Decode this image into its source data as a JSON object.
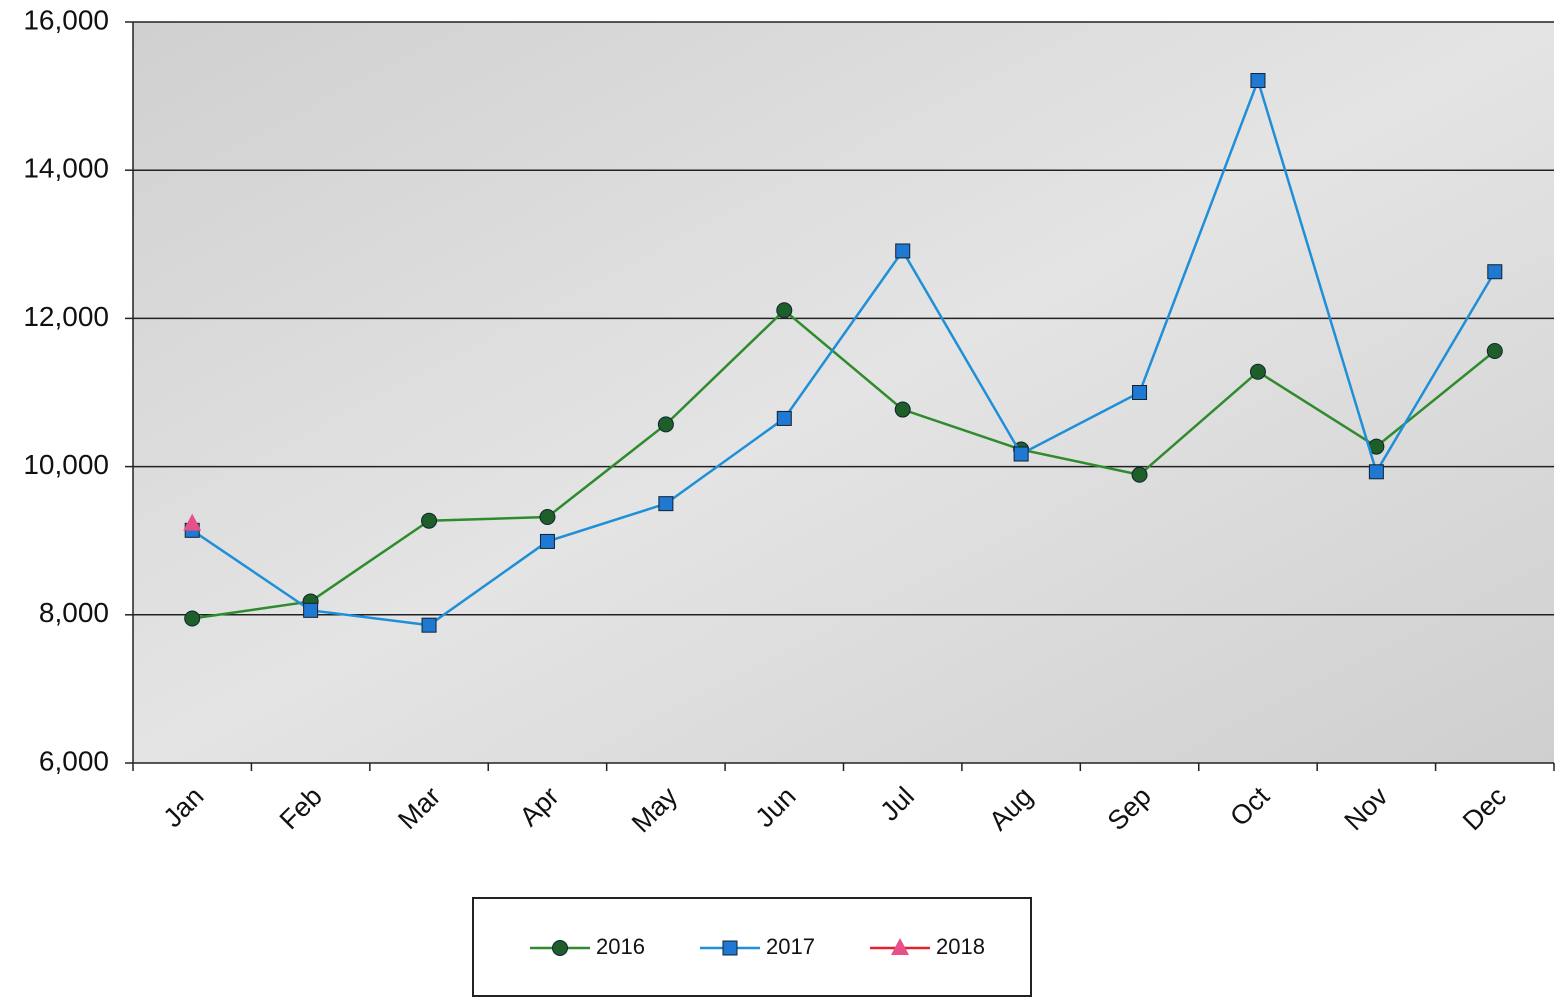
{
  "chart_data": {
    "type": "line",
    "categories": [
      "Jan",
      "Feb",
      "Mar",
      "Apr",
      "May",
      "Jun",
      "Jul",
      "Aug",
      "Sep",
      "Oct",
      "Nov",
      "Dec"
    ],
    "series": [
      {
        "name": "2016",
        "color": "#2e8b2e",
        "marker": "circle",
        "marker_color": "#1e5e28",
        "values": [
          7950,
          8180,
          9270,
          9320,
          10570,
          12110,
          10770,
          10230,
          9890,
          11280,
          10270,
          11560
        ]
      },
      {
        "name": "2017",
        "color": "#1e8fd8",
        "marker": "square",
        "marker_color": "#1f78d1",
        "values": [
          9140,
          8060,
          7860,
          8990,
          9500,
          10650,
          12910,
          10170,
          11000,
          15210,
          9930,
          12630
        ]
      },
      {
        "name": "2018",
        "color": "#e8202a",
        "marker": "triangle",
        "marker_color": "#e8508a",
        "values": [
          9230,
          null,
          null,
          null,
          null,
          null,
          null,
          null,
          null,
          null,
          null,
          null
        ]
      }
    ],
    "ylim": [
      6000,
      16000
    ],
    "yticks": [
      {
        "value": 6000,
        "label": "6,000"
      },
      {
        "value": 8000,
        "label": "8,000"
      },
      {
        "value": 10000,
        "label": "10,000"
      },
      {
        "value": 12000,
        "label": "12,000"
      },
      {
        "value": 14000,
        "label": "14,000"
      },
      {
        "value": 16000,
        "label": "16,000"
      }
    ],
    "grid": true,
    "legend": "bottom"
  }
}
